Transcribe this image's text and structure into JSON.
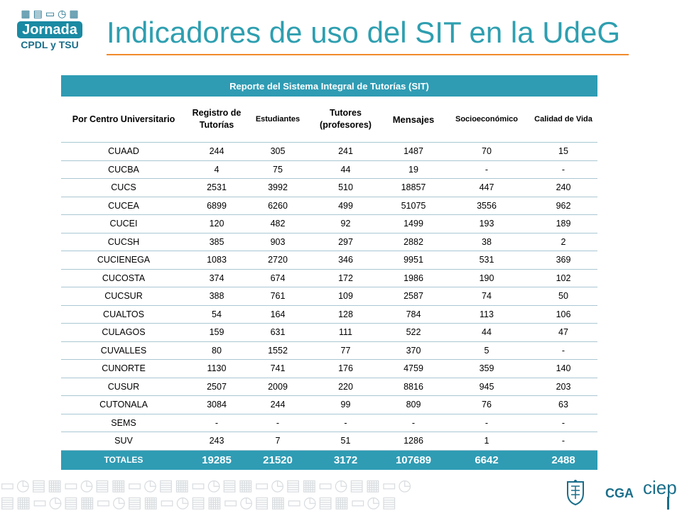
{
  "logo": {
    "line1": "Jornada",
    "line2": "CPDL y TSU"
  },
  "title": "Indicadores de uso del SIT en la UdeG",
  "table": {
    "caption": "Reporte del Sistema Integral de Tutorías (SIT)",
    "headers": [
      "Por Centro Universitario",
      "Registro de Tutorías",
      "Estudiantes",
      "Tutores (profesores)",
      "Mensajes",
      "Socioeconómico",
      "Calidad de Vida"
    ],
    "rows": [
      [
        "CUAAD",
        "244",
        "305",
        "241",
        "1487",
        "70",
        "15"
      ],
      [
        "CUCBA",
        "4",
        "75",
        "44",
        "19",
        "-",
        "-"
      ],
      [
        "CUCS",
        "2531",
        "3992",
        "510",
        "18857",
        "447",
        "240"
      ],
      [
        "CUCEA",
        "6899",
        "6260",
        "499",
        "51075",
        "3556",
        "962"
      ],
      [
        "CUCEI",
        "120",
        "482",
        "92",
        "1499",
        "193",
        "189"
      ],
      [
        "CUCSH",
        "385",
        "903",
        "297",
        "2882",
        "38",
        "2"
      ],
      [
        "CUCIENEGA",
        "1083",
        "2720",
        "346",
        "9951",
        "531",
        "369"
      ],
      [
        "CUCOSTA",
        "374",
        "674",
        "172",
        "1986",
        "190",
        "102"
      ],
      [
        "CUCSUR",
        "388",
        "761",
        "109",
        "2587",
        "74",
        "50"
      ],
      [
        "CUALTOS",
        "54",
        "164",
        "128",
        "784",
        "113",
        "106"
      ],
      [
        "CULAGOS",
        "159",
        "631",
        "111",
        "522",
        "44",
        "47"
      ],
      [
        "CUVALLES",
        "80",
        "1552",
        "77",
        "370",
        "5",
        "-"
      ],
      [
        "CUNORTE",
        "1130",
        "741",
        "176",
        "4759",
        "359",
        "140"
      ],
      [
        "CUSUR",
        "2507",
        "2009",
        "220",
        "8816",
        "945",
        "203"
      ],
      [
        "CUTONALA",
        "3084",
        "244",
        "99",
        "809",
        "76",
        "63"
      ],
      [
        "SEMS",
        "-",
        "-",
        "-",
        "-",
        "-",
        "-"
      ],
      [
        "SUV",
        "243",
        "7",
        "51",
        "1286",
        "1",
        "-"
      ]
    ],
    "totals": [
      "TOTALES",
      "19285",
      "21520",
      "3172",
      "107689",
      "6642",
      "2488"
    ]
  },
  "footer": {
    "cga": "CGA",
    "ciep": "ciep"
  },
  "colors": {
    "teal": "#2f9cb4",
    "title": "#2e9fb0",
    "rule": "#f08a2c",
    "navy": "#1a6e8a"
  }
}
